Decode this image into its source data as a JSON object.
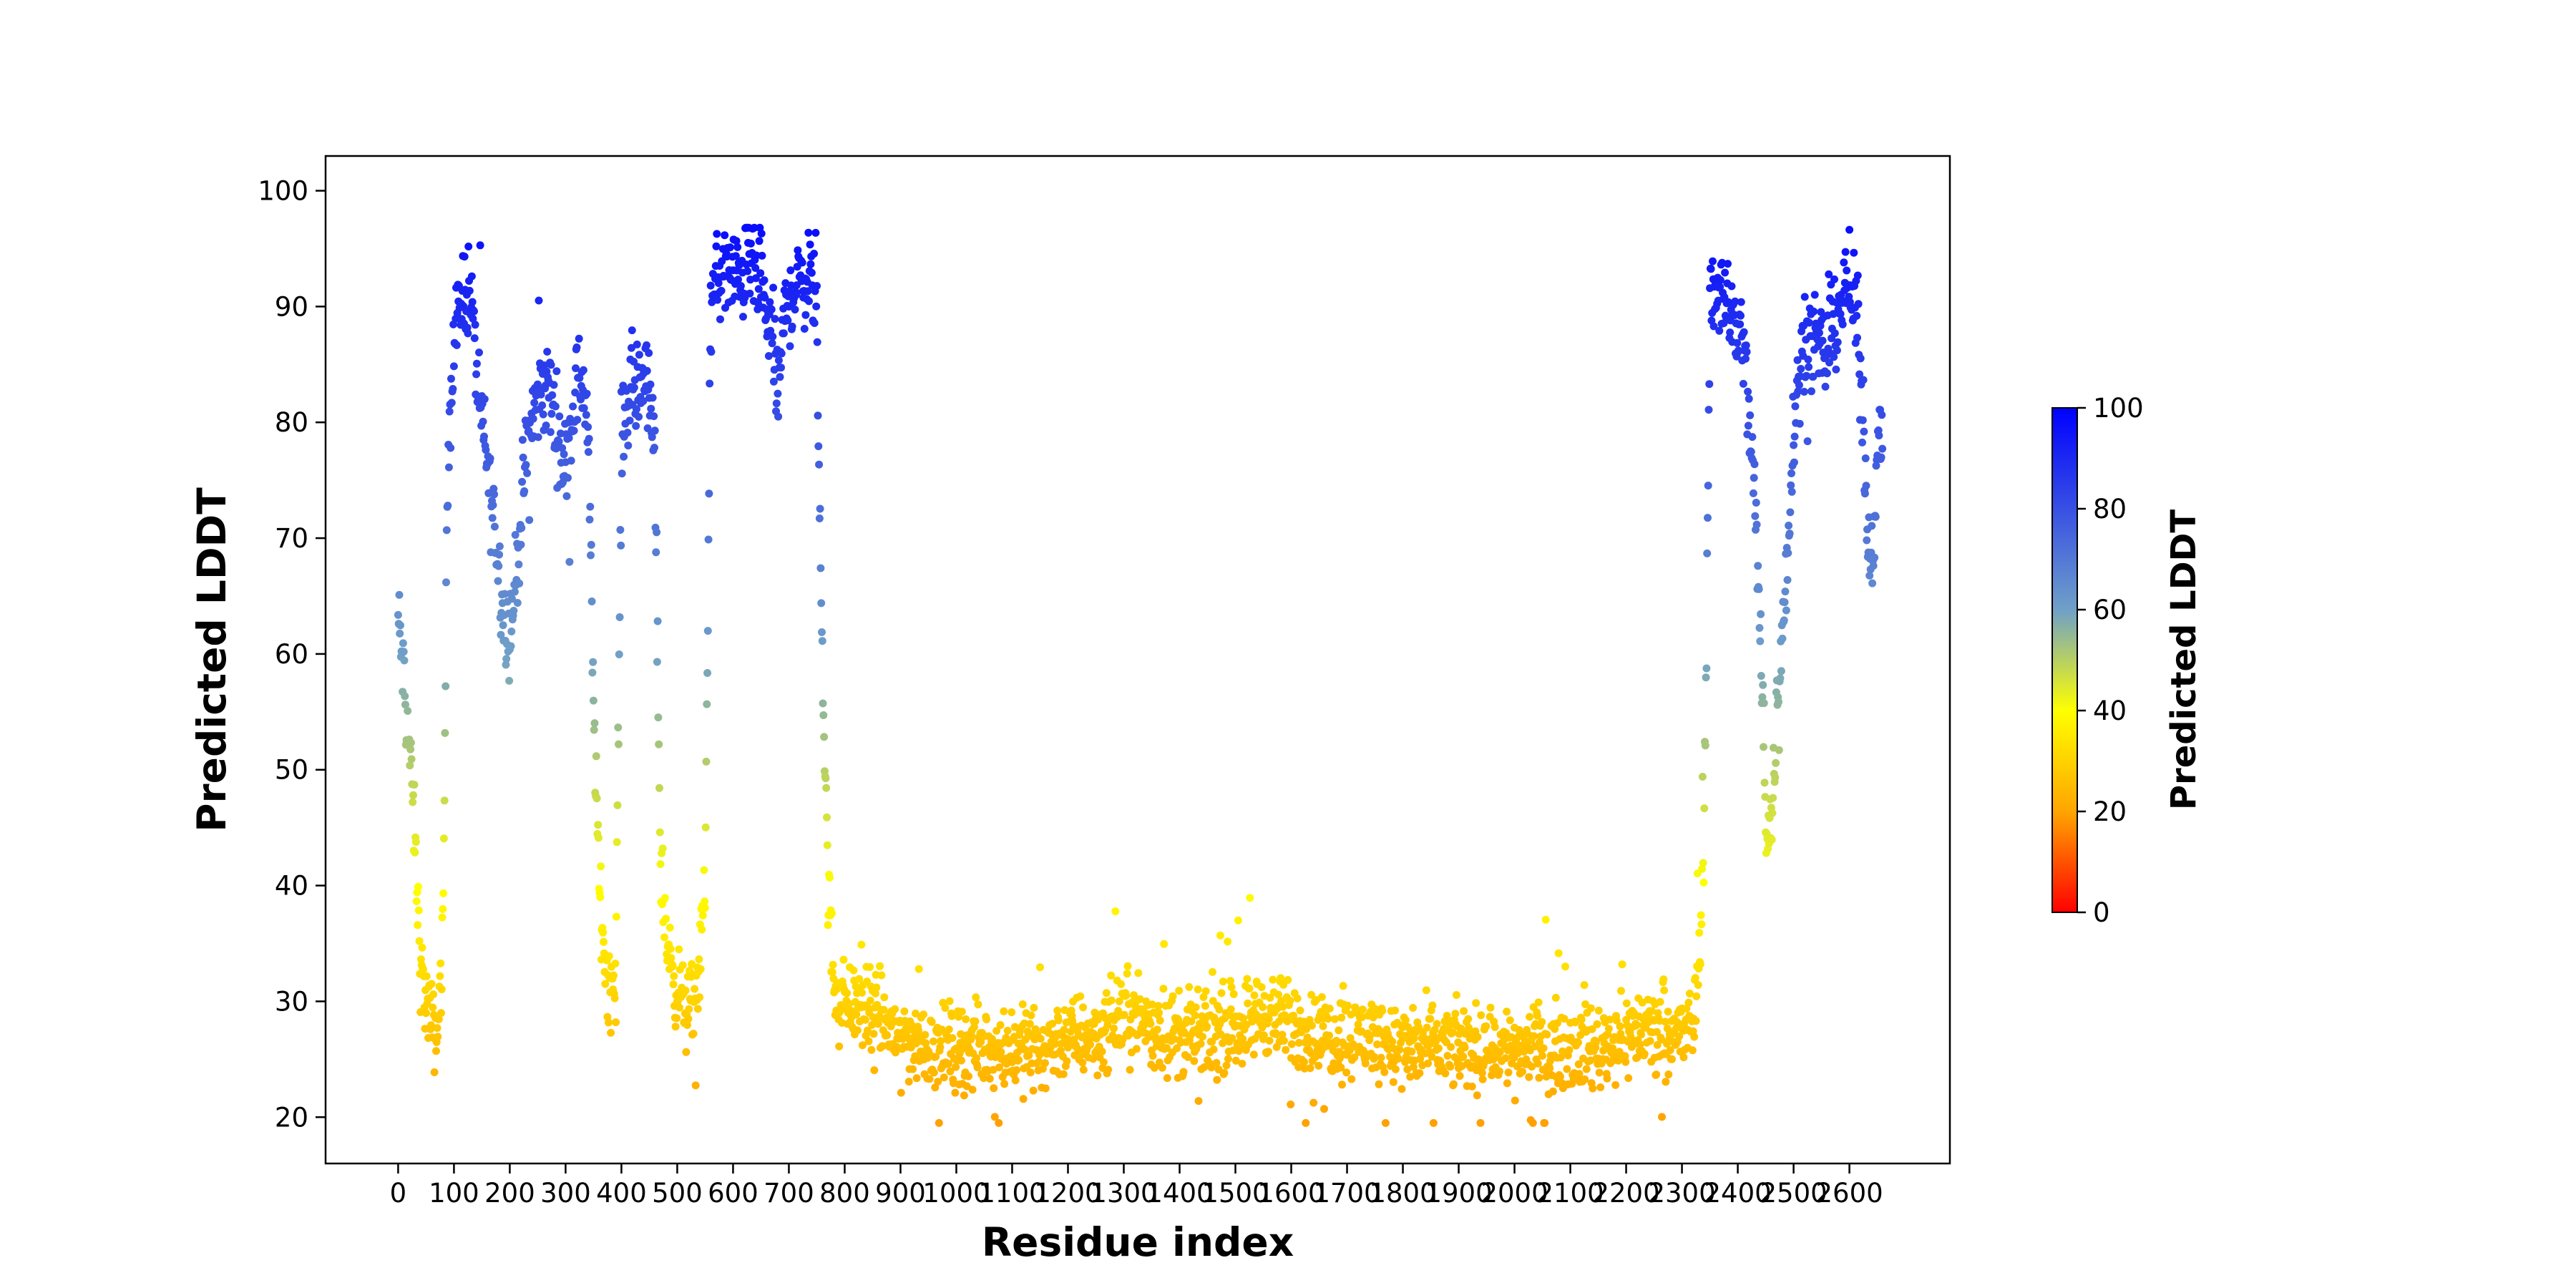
{
  "chart_data": {
    "type": "scatter",
    "title": "",
    "xlabel": "Residue index",
    "ylabel": "Predicted LDDT",
    "xlim": [
      -130,
      2780
    ],
    "ylim": [
      16,
      103
    ],
    "x_ticks": [
      0,
      100,
      200,
      300,
      400,
      500,
      600,
      700,
      800,
      900,
      1000,
      1100,
      1200,
      1300,
      1400,
      1500,
      1600,
      1700,
      1800,
      1900,
      2000,
      2100,
      2200,
      2300,
      2400,
      2500,
      2600
    ],
    "y_ticks": [
      20,
      30,
      40,
      50,
      60,
      70,
      80,
      90,
      100
    ],
    "grid": false,
    "legend": "none",
    "colorbar": {
      "label": "Predicted LDDT",
      "range": [
        0,
        100
      ],
      "ticks": [
        0,
        20,
        40,
        60,
        80,
        100
      ],
      "colors": [
        "#ff0000",
        "#ffa500",
        "#ffff00",
        "#6fa0c8",
        "#0000ff"
      ]
    },
    "series": [
      {
        "profile": [
          [
            0,
            63
          ],
          [
            10,
            58
          ],
          [
            20,
            52
          ],
          [
            30,
            44
          ],
          [
            40,
            33
          ],
          [
            50,
            30
          ],
          [
            60,
            28
          ],
          [
            70,
            27
          ],
          [
            80,
            35
          ],
          [
            90,
            80
          ],
          [
            100,
            86
          ],
          [
            110,
            90
          ],
          [
            120,
            92
          ],
          [
            130,
            91
          ],
          [
            140,
            85
          ],
          [
            150,
            80
          ],
          [
            160,
            76
          ],
          [
            170,
            72
          ],
          [
            180,
            68
          ],
          [
            190,
            63
          ],
          [
            200,
            62
          ],
          [
            210,
            66
          ],
          [
            220,
            72
          ],
          [
            230,
            77
          ],
          [
            240,
            80
          ],
          [
            250,
            82
          ],
          [
            260,
            83
          ],
          [
            270,
            83
          ],
          [
            280,
            81
          ],
          [
            290,
            78
          ],
          [
            300,
            76
          ],
          [
            310,
            80
          ],
          [
            320,
            83
          ],
          [
            330,
            84
          ],
          [
            340,
            80
          ],
          [
            350,
            56
          ],
          [
            360,
            40
          ],
          [
            370,
            34
          ],
          [
            380,
            31
          ],
          [
            390,
            32
          ],
          [
            400,
            78
          ],
          [
            410,
            82
          ],
          [
            420,
            83
          ],
          [
            430,
            82
          ],
          [
            440,
            85
          ],
          [
            450,
            82
          ],
          [
            460,
            77
          ],
          [
            470,
            42
          ],
          [
            480,
            36
          ],
          [
            490,
            33
          ],
          [
            500,
            31
          ],
          [
            510,
            30
          ],
          [
            520,
            29
          ],
          [
            530,
            30
          ],
          [
            540,
            33
          ],
          [
            550,
            40
          ],
          [
            560,
            90
          ],
          [
            570,
            92
          ],
          [
            580,
            93
          ],
          [
            590,
            93
          ],
          [
            600,
            92
          ],
          [
            610,
            93
          ],
          [
            620,
            93
          ],
          [
            630,
            94
          ],
          [
            640,
            93
          ],
          [
            650,
            91
          ],
          [
            660,
            89
          ],
          [
            670,
            88
          ],
          [
            680,
            82
          ],
          [
            690,
            88
          ],
          [
            700,
            91
          ],
          [
            720,
            92
          ],
          [
            740,
            93
          ],
          [
            750,
            88
          ],
          [
            760,
            60
          ],
          [
            770,
            40
          ],
          [
            780,
            32
          ],
          [
            800,
            30
          ],
          [
            850,
            29
          ],
          [
            900,
            27
          ],
          [
            950,
            26
          ],
          [
            1000,
            26
          ],
          [
            1050,
            26
          ],
          [
            1100,
            26
          ],
          [
            1150,
            26
          ],
          [
            1200,
            27
          ],
          [
            1250,
            27
          ],
          [
            1300,
            29
          ],
          [
            1350,
            28
          ],
          [
            1400,
            27
          ],
          [
            1450,
            27
          ],
          [
            1500,
            28
          ],
          [
            1550,
            29
          ],
          [
            1600,
            28
          ],
          [
            1650,
            27
          ],
          [
            1700,
            27
          ],
          [
            1750,
            27
          ],
          [
            1800,
            26
          ],
          [
            1850,
            26
          ],
          [
            1900,
            26
          ],
          [
            1950,
            26
          ],
          [
            2000,
            26
          ],
          [
            2050,
            26
          ],
          [
            2100,
            26
          ],
          [
            2150,
            26
          ],
          [
            2200,
            27
          ],
          [
            2250,
            28
          ],
          [
            2300,
            27
          ],
          [
            2320,
            28
          ],
          [
            2330,
            33
          ],
          [
            2340,
            45
          ],
          [
            2350,
            90
          ],
          [
            2370,
            92
          ],
          [
            2390,
            89
          ],
          [
            2410,
            87
          ],
          [
            2430,
            74
          ],
          [
            2440,
            62
          ],
          [
            2450,
            46
          ],
          [
            2460,
            45
          ],
          [
            2470,
            55
          ],
          [
            2480,
            62
          ],
          [
            2490,
            70
          ],
          [
            2500,
            80
          ],
          [
            2510,
            84
          ],
          [
            2520,
            88
          ],
          [
            2540,
            86
          ],
          [
            2560,
            86
          ],
          [
            2580,
            90
          ],
          [
            2600,
            92
          ],
          [
            2615,
            88
          ],
          [
            2625,
            80
          ],
          [
            2635,
            68
          ],
          [
            2645,
            72
          ],
          [
            2655,
            80
          ]
        ],
        "residue_count": 2660
      }
    ]
  }
}
